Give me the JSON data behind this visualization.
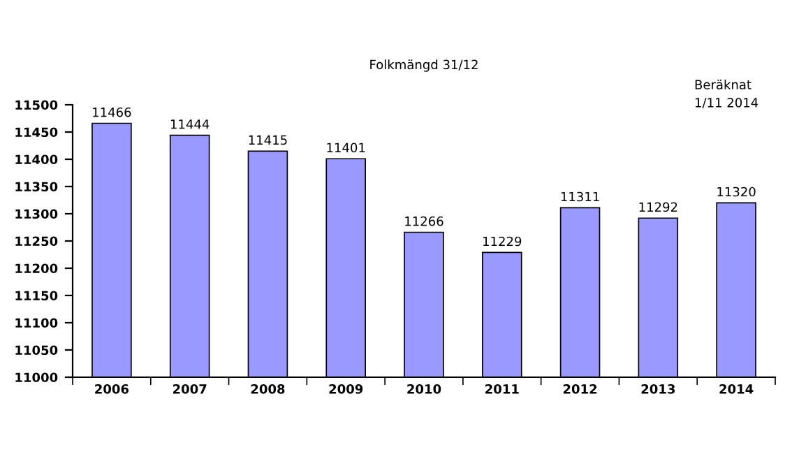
{
  "chart_data": {
    "type": "bar",
    "title": "Folkmängd 31/12",
    "categories": [
      "2006",
      "2007",
      "2008",
      "2009",
      "2010",
      "2011",
      "2012",
      "2013",
      "2014"
    ],
    "values": [
      11466,
      11444,
      11415,
      11401,
      11266,
      11229,
      11311,
      11292,
      11320
    ],
    "color": "#9999ff",
    "data_labels": true,
    "grid": false,
    "ylim": [
      11000,
      11500
    ],
    "yticks": [
      11000,
      11050,
      11100,
      11150,
      11200,
      11250,
      11300,
      11350,
      11400,
      11450,
      11500
    ],
    "annotations": [
      "Beräknat\n1/11 2014"
    ]
  }
}
